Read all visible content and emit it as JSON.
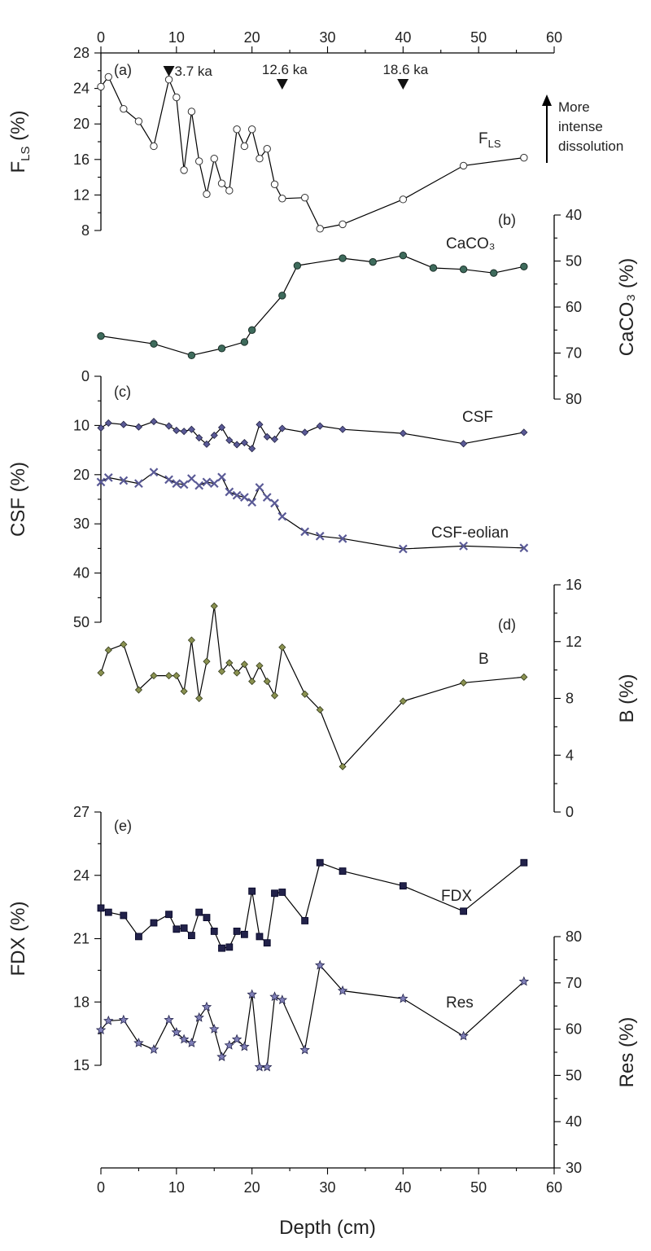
{
  "chart_data": {
    "type": "line",
    "xlabel": "Depth (cm)",
    "xlim": [
      0,
      60
    ],
    "x_ticks": [
      "0",
      "10",
      "20",
      "30",
      "40",
      "50",
      "60"
    ],
    "age_markers": [
      {
        "depth": 9,
        "label": "3.7 ka"
      },
      {
        "depth": 24,
        "label": "12.6 ka"
      },
      {
        "depth": 40,
        "label": "18.6 ka"
      }
    ],
    "annotation": {
      "lines": [
        "More",
        "intense",
        "dissolution"
      ]
    },
    "panels": [
      {
        "id": "a",
        "panel_label": "(a)",
        "y_label": "F",
        "y_label_sub": "LS",
        "y_label_suffix": " (%)",
        "axis_side": "left",
        "ylim": [
          8,
          28
        ],
        "y_ticks": [
          "8",
          "12",
          "16",
          "20",
          "24",
          "28"
        ],
        "series": [
          {
            "name": "F",
            "name_sub": "LS",
            "marker": "circle-open",
            "x": [
              0,
              1,
              3,
              5,
              7,
              9,
              10,
              11,
              12,
              13,
              14,
              15,
              16,
              17,
              18,
              19,
              20,
              21,
              22,
              23,
              24,
              27,
              29,
              32,
              40,
              48,
              56
            ],
            "y": [
              24.2,
              25.3,
              21.7,
              20.3,
              17.5,
              25.0,
              23.0,
              14.8,
              21.4,
              15.8,
              12.1,
              16.1,
              13.3,
              12.5,
              19.4,
              17.5,
              19.4,
              16.1,
              17.2,
              13.2,
              11.6,
              11.7,
              8.2,
              8.7,
              11.5,
              15.3,
              16.2
            ]
          }
        ]
      },
      {
        "id": "b",
        "panel_label": "(b)",
        "y_label": "CaCO₃ (%)",
        "axis_side": "right",
        "ylim": [
          40,
          80
        ],
        "inverted": true,
        "y_ticks": [
          "40",
          "50",
          "60",
          "70",
          "80"
        ],
        "series": [
          {
            "name": "CaCO₃",
            "marker": "circle-green",
            "x": [
              0,
              7,
              12,
              16,
              19,
              20,
              24,
              26,
              32,
              36,
              40,
              44,
              48,
              52,
              56
            ],
            "y": [
              66.3,
              68.0,
              70.5,
              69.0,
              67.6,
              65.0,
              57.5,
              51.0,
              49.4,
              50.2,
              48.8,
              51.5,
              51.8,
              52.6,
              51.2
            ]
          }
        ]
      },
      {
        "id": "c",
        "panel_label": "(c)",
        "y_label": "CSF (%)",
        "axis_side": "left",
        "ylim": [
          0,
          50
        ],
        "inverted": true,
        "y_ticks": [
          "0",
          "10",
          "20",
          "30",
          "40",
          "50"
        ],
        "series": [
          {
            "name": "CSF",
            "marker": "diamond-purple",
            "x": [
              0,
              1,
              3,
              5,
              7,
              9,
              10,
              11,
              12,
              13,
              14,
              15,
              16,
              17,
              18,
              19,
              20,
              21,
              22,
              23,
              24,
              27,
              29,
              32,
              40,
              48,
              56
            ],
            "y": [
              10.5,
              9.5,
              9.8,
              10.3,
              9.2,
              10.1,
              11.0,
              11.2,
              10.8,
              12.5,
              13.8,
              12.0,
              10.4,
              13.0,
              13.9,
              13.5,
              14.7,
              9.8,
              12.3,
              12.8,
              10.6,
              11.4,
              10.1,
              10.8,
              11.6,
              13.7,
              11.4
            ]
          },
          {
            "name": "CSF-eolian",
            "marker": "x-purple",
            "x": [
              0,
              1,
              3,
              5,
              7,
              9,
              10,
              11,
              12,
              13,
              14,
              15,
              16,
              17,
              18,
              19,
              20,
              21,
              22,
              23,
              24,
              27,
              29,
              32,
              40,
              48,
              56
            ],
            "y": [
              21.5,
              20.6,
              21.2,
              21.8,
              19.5,
              21.0,
              21.8,
              22.0,
              20.8,
              22.2,
              21.5,
              21.8,
              20.5,
              23.5,
              24.2,
              24.6,
              25.6,
              22.6,
              24.6,
              25.8,
              28.5,
              31.6,
              32.5,
              33.0,
              35.1,
              34.5,
              34.9
            ]
          }
        ]
      },
      {
        "id": "d",
        "panel_label": "(d)",
        "y_label": "B (%)",
        "axis_side": "right",
        "ylim": [
          0,
          16
        ],
        "y_ticks": [
          "0",
          "4",
          "8",
          "12",
          "16"
        ],
        "series": [
          {
            "name": "B",
            "marker": "diamond-olive",
            "x": [
              0,
              1,
              3,
              5,
              7,
              9,
              10,
              11,
              12,
              13,
              14,
              15,
              16,
              17,
              18,
              19,
              20,
              21,
              22,
              23,
              24,
              27,
              29,
              32,
              40,
              48,
              56
            ],
            "y": [
              9.8,
              11.4,
              11.8,
              8.6,
              9.6,
              9.6,
              9.6,
              8.5,
              12.1,
              8.0,
              10.6,
              14.5,
              9.9,
              10.5,
              9.8,
              10.4,
              9.2,
              10.3,
              9.2,
              8.2,
              11.6,
              8.3,
              7.2,
              3.2,
              7.8,
              9.1,
              9.5
            ]
          }
        ]
      },
      {
        "id": "e",
        "panel_label": "(e)",
        "y_label": "FDX (%)",
        "axis_side": "left",
        "ylim": [
          15,
          27
        ],
        "y_ticks": [
          "15",
          "18",
          "21",
          "24",
          "27"
        ],
        "series": [
          {
            "name": "FDX",
            "marker": "square-navy",
            "x": [
              0,
              1,
              3,
              5,
              7,
              9,
              10,
              11,
              12,
              13,
              14,
              15,
              16,
              17,
              18,
              19,
              20,
              21,
              22,
              23,
              24,
              27,
              29,
              32,
              40,
              48,
              56
            ],
            "y": [
              22.45,
              22.25,
              22.1,
              21.1,
              21.75,
              22.15,
              21.45,
              21.5,
              21.15,
              22.25,
              22.0,
              21.35,
              20.55,
              20.6,
              21.35,
              21.2,
              23.25,
              21.1,
              20.8,
              23.15,
              23.2,
              21.85,
              24.6,
              24.2,
              23.5,
              22.3,
              24.6
            ]
          }
        ]
      },
      {
        "id": "e2",
        "y_label": "Res (%)",
        "axis_side": "right",
        "ylim": [
          30,
          80
        ],
        "y_ticks": [
          "30",
          "40",
          "50",
          "60",
          "70",
          "80"
        ],
        "series": [
          {
            "name": "Res",
            "marker": "star-navy",
            "x": [
              0,
              1,
              3,
              5,
              7,
              9,
              10,
              11,
              12,
              13,
              14,
              15,
              16,
              17,
              18,
              19,
              20,
              21,
              22,
              23,
              24,
              27,
              29,
              32,
              40,
              48,
              56
            ],
            "y": [
              59.8,
              61.8,
              62.0,
              57.0,
              55.6,
              62.0,
              59.3,
              57.8,
              57.0,
              62.5,
              64.8,
              60.0,
              54.0,
              56.5,
              57.8,
              56.2,
              67.5,
              51.8,
              51.8,
              67.0,
              66.3,
              55.5,
              73.8,
              68.3,
              66.6,
              58.5,
              70.3
            ]
          }
        ]
      }
    ]
  }
}
